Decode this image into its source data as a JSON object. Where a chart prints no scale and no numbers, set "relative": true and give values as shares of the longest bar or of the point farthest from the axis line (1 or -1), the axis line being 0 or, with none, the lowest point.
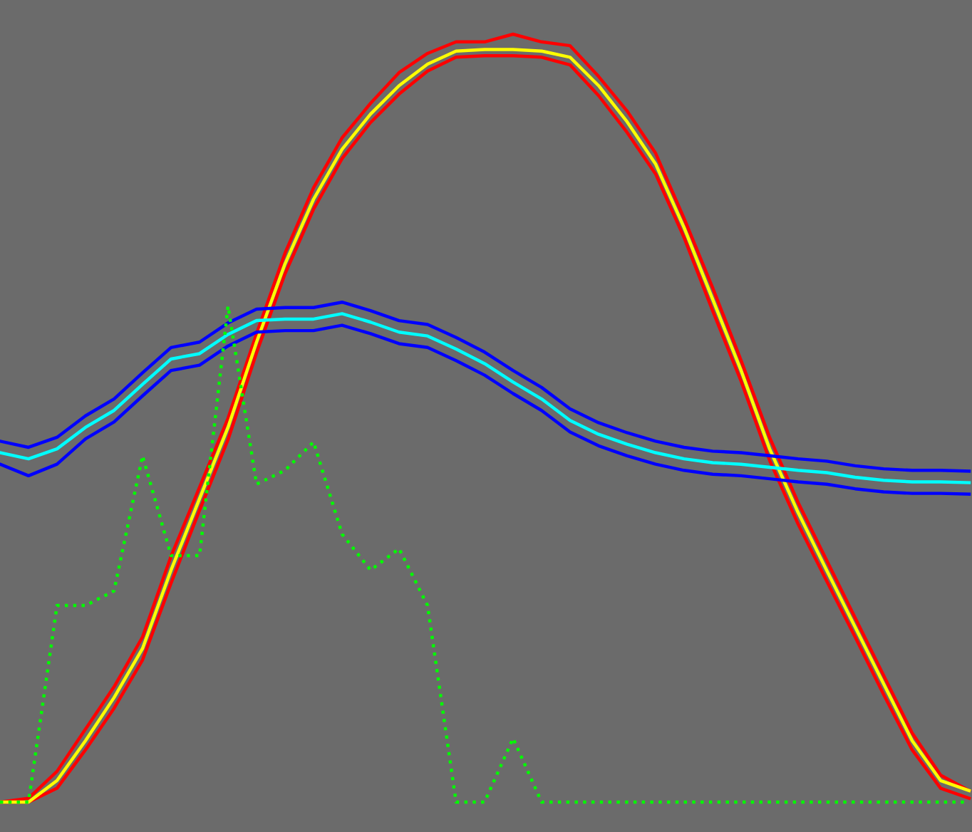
{
  "chart_data": {
    "type": "line",
    "relative": true,
    "categories": [
      null,
      null,
      null,
      null,
      null,
      null,
      null,
      null,
      null,
      null,
      null,
      null,
      null,
      null,
      null,
      null,
      null,
      null,
      null,
      null,
      null,
      null,
      null,
      null,
      null,
      null,
      null,
      null,
      null,
      null,
      null,
      null,
      null,
      null,
      null
    ],
    "series": [
      {
        "color": "#ff0000",
        "line_style": "solid",
        "values": [
          0,
          0.005,
          0.04,
          0.095,
          0.15,
          0.215,
          0.32,
          0.41,
          0.5,
          0.61,
          0.715,
          0.8,
          0.865,
          0.91,
          0.95,
          0.975,
          0.99,
          0.99,
          1,
          0.99,
          0.985,
          0.945,
          0.9,
          0.845,
          0.76,
          0.67,
          0.575,
          0.475,
          0.39,
          0.315,
          0.24,
          0.165,
          0.09,
          0.035,
          0.015
        ]
      },
      {
        "color": "#ff0000",
        "line_style": "solid",
        "values": [
          0,
          0,
          0.018,
          0.068,
          0.122,
          0.185,
          0.285,
          0.38,
          0.472,
          0.585,
          0.688,
          0.772,
          0.838,
          0.885,
          0.922,
          0.952,
          0.97,
          0.972,
          0.972,
          0.97,
          0.96,
          0.92,
          0.872,
          0.818,
          0.735,
          0.64,
          0.548,
          0.445,
          0.362,
          0.288,
          0.215,
          0.14,
          0.068,
          0.018,
          0.005
        ]
      },
      {
        "color": "#ffff00",
        "line_style": "solid",
        "values": [
          0,
          0,
          0.028,
          0.08,
          0.136,
          0.2,
          0.302,
          0.395,
          0.488,
          0.599,
          0.701,
          0.785,
          0.85,
          0.896,
          0.933,
          0.961,
          0.978,
          0.98,
          0.98,
          0.978,
          0.97,
          0.933,
          0.886,
          0.831,
          0.748,
          0.655,
          0.562,
          0.46,
          0.377,
          0.302,
          0.228,
          0.154,
          0.08,
          0.028,
          0.015
        ]
      },
      {
        "color": "#0000ff",
        "line_style": "solid",
        "values": [
          0.47,
          0.462,
          0.475,
          0.503,
          0.525,
          0.559,
          0.592,
          0.599,
          0.624,
          0.642,
          0.644,
          0.644,
          0.651,
          0.64,
          0.627,
          0.622,
          0.605,
          0.586,
          0.562,
          0.54,
          0.512,
          0.494,
          0.481,
          0.47,
          0.462,
          0.457,
          0.455,
          0.451,
          0.447,
          0.444,
          0.438,
          0.434,
          0.432,
          0.432,
          0.431
        ]
      },
      {
        "color": "#0000ff",
        "line_style": "solid",
        "values": [
          0.44,
          0.425,
          0.44,
          0.473,
          0.495,
          0.529,
          0.562,
          0.569,
          0.594,
          0.612,
          0.614,
          0.614,
          0.621,
          0.61,
          0.597,
          0.592,
          0.575,
          0.556,
          0.532,
          0.51,
          0.482,
          0.464,
          0.451,
          0.44,
          0.432,
          0.427,
          0.425,
          0.421,
          0.417,
          0.414,
          0.408,
          0.404,
          0.402,
          0.402,
          0.401
        ]
      },
      {
        "color": "#00ffff",
        "line_style": "solid",
        "values": [
          0.455,
          0.447,
          0.46,
          0.488,
          0.51,
          0.544,
          0.577,
          0.584,
          0.609,
          0.627,
          0.629,
          0.629,
          0.636,
          0.625,
          0.612,
          0.607,
          0.59,
          0.571,
          0.547,
          0.525,
          0.497,
          0.479,
          0.466,
          0.455,
          0.447,
          0.442,
          0.44,
          0.436,
          0.432,
          0.429,
          0.423,
          0.419,
          0.417,
          0.417,
          0.416
        ]
      },
      {
        "color": "#00ff00",
        "line_style": "dotted",
        "values": [
          0,
          0,
          0.256,
          0.256,
          0.275,
          0.451,
          0.321,
          0.321,
          0.646,
          0.414,
          0.432,
          0.469,
          0.349,
          0.302,
          0.33,
          0.256,
          0,
          0,
          0.083,
          0,
          0,
          0,
          0,
          0,
          0,
          0,
          0,
          0,
          0,
          0,
          0,
          0,
          0,
          0,
          0
        ]
      }
    ]
  }
}
